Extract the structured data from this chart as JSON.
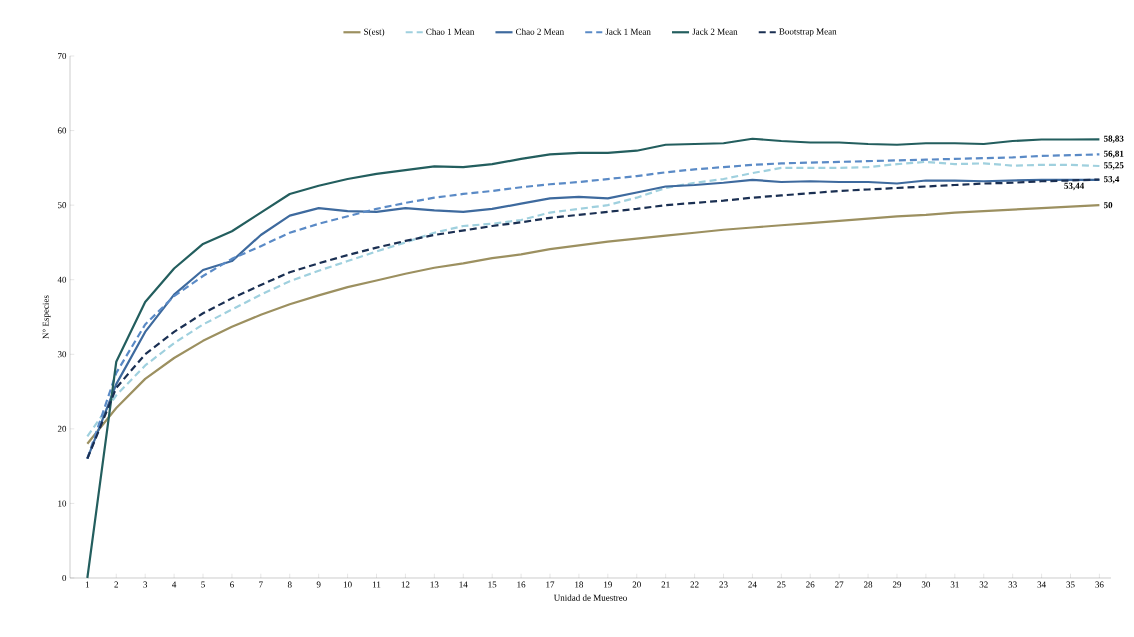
{
  "chart_data": {
    "type": "line",
    "xlabel": "Unidad de Muestreo",
    "ylabel": "N° Especies",
    "categories": [
      "1",
      "2",
      "3",
      "4",
      "5",
      "6",
      "7",
      "8",
      "9",
      "10",
      "11",
      "12",
      "13",
      "14",
      "15",
      "16",
      "17",
      "18",
      "19",
      "20",
      "21",
      "22",
      "23",
      "24",
      "25",
      "26",
      "27",
      "28",
      "29",
      "30",
      "31",
      "32",
      "33",
      "34",
      "35",
      "36"
    ],
    "ylim": [
      0,
      70
    ],
    "yticks": [
      0,
      10,
      20,
      30,
      40,
      50,
      60,
      70
    ],
    "grid": false,
    "legend": "top",
    "marker": "none",
    "series": [
      {
        "name": "S(est)",
        "color": "#9c9060",
        "line_style": "solid",
        "values": [
          18,
          22.8,
          26.7,
          29.5,
          31.8,
          33.7,
          35.3,
          36.7,
          37.9,
          39,
          39.9,
          40.8,
          41.6,
          42.2,
          42.9,
          43.4,
          44.1,
          44.6,
          45.1,
          45.5,
          45.9,
          46.3,
          46.7,
          47,
          47.3,
          47.6,
          47.9,
          48.2,
          48.5,
          48.7,
          49,
          49.2,
          49.4,
          49.6,
          49.8,
          50
        ]
      },
      {
        "name": "Chao 1 Mean",
        "color": "#9fd0de",
        "line_style": "dashed",
        "values": [
          19,
          24.5,
          28.5,
          31.5,
          34,
          36,
          38,
          39.8,
          41.2,
          42.5,
          43.8,
          45,
          46.3,
          47.2,
          47.5,
          48,
          49,
          49.5,
          50,
          51,
          52.3,
          53,
          53.5,
          54.3,
          55,
          55,
          55,
          55.1,
          55.5,
          55.8,
          55.5,
          55.6,
          55.3,
          55.4,
          55.4,
          55.25
        ]
      },
      {
        "name": "Chao 2 Mean",
        "color": "#3e6a9e",
        "line_style": "solid",
        "values": [
          16,
          26,
          33,
          38,
          41.3,
          42.5,
          46,
          48.6,
          49.6,
          49.2,
          49.1,
          49.6,
          49.3,
          49.1,
          49.5,
          50.2,
          50.9,
          51.1,
          50.9,
          51.7,
          52.5,
          52.7,
          53,
          53.4,
          53.1,
          53.2,
          53.1,
          53.1,
          52.9,
          53.3,
          53.3,
          53.2,
          53.3,
          53.4,
          53.4,
          53.4
        ]
      },
      {
        "name": "Jack 1 Mean",
        "color": "#5a8ac6",
        "line_style": "dashed",
        "values": [
          16,
          27.5,
          34,
          37.8,
          40.5,
          42.8,
          44.5,
          46.3,
          47.5,
          48.5,
          49.5,
          50.3,
          51,
          51.5,
          51.9,
          52.4,
          52.8,
          53.1,
          53.5,
          53.9,
          54.4,
          54.8,
          55.1,
          55.4,
          55.6,
          55.7,
          55.8,
          55.9,
          56,
          56.1,
          56.2,
          56.3,
          56.4,
          56.6,
          56.7,
          56.81
        ]
      },
      {
        "name": "Jack 2 Mean",
        "color": "#235e5e",
        "line_style": "solid",
        "values": [
          0,
          29,
          37,
          41.5,
          44.8,
          46.5,
          49,
          51.5,
          52.6,
          53.5,
          54.2,
          54.7,
          55.2,
          55.1,
          55.5,
          56.2,
          56.8,
          57,
          57,
          57.3,
          58.1,
          58.2,
          58.3,
          58.9,
          58.6,
          58.4,
          58.4,
          58.2,
          58.1,
          58.3,
          58.3,
          58.2,
          58.6,
          58.8,
          58.8,
          58.83
        ]
      },
      {
        "name": "Bootstrap Mean",
        "color": "#1a2f52",
        "line_style": "dashed",
        "values": [
          16,
          25.5,
          30,
          33,
          35.5,
          37.5,
          39.3,
          41,
          42.2,
          43.3,
          44.3,
          45.2,
          46,
          46.6,
          47.2,
          47.7,
          48.3,
          48.7,
          49.1,
          49.5,
          50,
          50.3,
          50.6,
          51,
          51.3,
          51.6,
          51.9,
          52.1,
          52.3,
          52.5,
          52.7,
          52.9,
          53,
          53.2,
          53.3,
          53.44
        ]
      }
    ],
    "annotations": [
      {
        "text": "58,83",
        "x": "36",
        "y": 58.83
      },
      {
        "text": "56,81",
        "x": "36",
        "y": 56.81
      },
      {
        "text": "55,25",
        "x": "36",
        "y": 55.25
      },
      {
        "text": "53,4",
        "x": "36",
        "y": 53.4
      },
      {
        "text": "53,44",
        "x": "36",
        "y": 53.44
      },
      {
        "text": "50",
        "x": "36",
        "y": 50
      }
    ]
  }
}
